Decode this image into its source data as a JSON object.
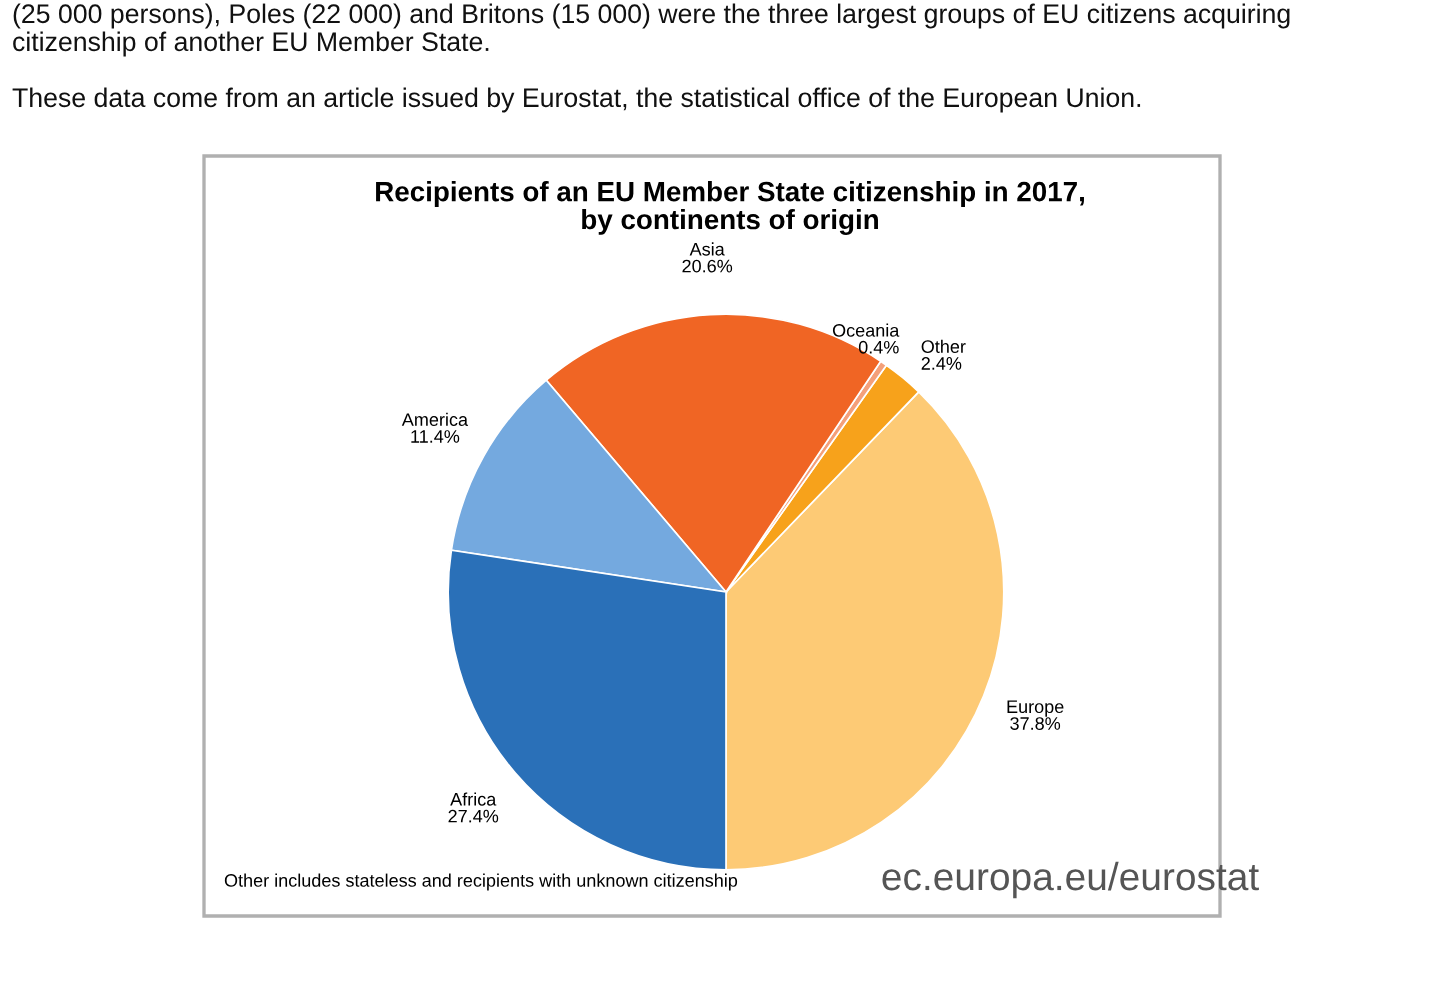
{
  "chart_data": {
    "type": "pie",
    "title": "Recipients of an EU Member State citizenship in 2017,\nby continents of origin",
    "categories": [
      "Europe",
      "Other",
      "Oceania",
      "Asia",
      "America",
      "Africa"
    ],
    "values": [
      37.8,
      2.4,
      0.4,
      20.6,
      11.4,
      27.4
    ],
    "colors": [
      "#fdca75",
      "#f7a21b",
      "#f4a07a",
      "#f06524",
      "#74a9df",
      "#2a70b8"
    ],
    "value_labels": [
      "37.8%",
      "2.4%",
      "0.4%",
      "20.6%",
      "11.4%",
      "27.4%"
    ],
    "legend": false,
    "annotations": [
      "(25 000 persons), Poles (22 000) and Britons (15 000) were the three largest groups of EU citizens acquiring",
      "citizenship of another EU Member State.",
      "These data come from an article issued by Eurostat, the statistical office of the European Union.",
      "Other includes stateless and recipients with unknown citizenship",
      "ec.europa.eu/eurostat"
    ]
  }
}
